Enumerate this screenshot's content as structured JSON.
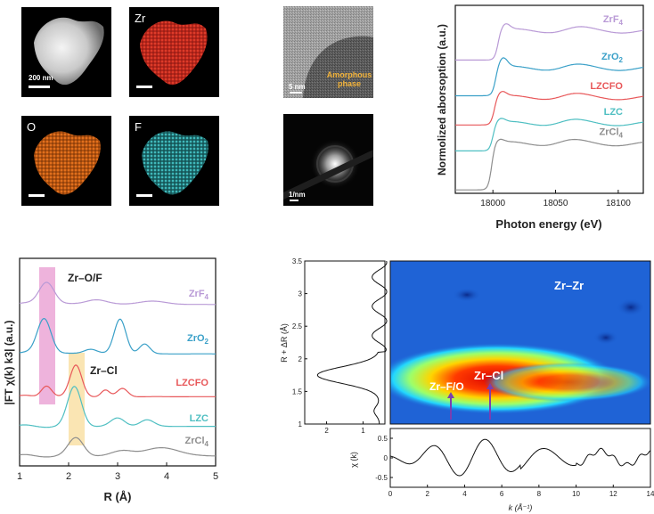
{
  "figure": {
    "eds": {
      "haadf_scale": "200 nm",
      "labels": [
        "Zr",
        "O",
        "F"
      ]
    },
    "tem": {
      "hrtem_scale": "5 nm",
      "annotation_line1": "Amorphous",
      "annotation_line2": "phase",
      "saed_scale": "1/nm"
    },
    "colors": {
      "ZrF4": "#b99ad6",
      "ZrO2": "#3aa0c8",
      "LZCFO": "#e8585a",
      "LZC": "#4fbfc2",
      "ZrCl4": "#8e8e8e"
    }
  },
  "chart_data": [
    {
      "type": "line",
      "title": "",
      "xlabel": "Photon energy (eV)",
      "ylabel": "Normolized aborsoption (a.u.)",
      "xlim": [
        17970,
        18120
      ],
      "xticks": [
        "18000",
        "18050",
        "18100"
      ],
      "series": [
        {
          "name": "ZrF4",
          "label_main": "ZrF",
          "label_sub": "4",
          "offset": 4.0,
          "edge": 18004,
          "jump": 0.85,
          "wl": 0.18
        },
        {
          "name": "ZrO2",
          "label_main": "ZrO",
          "label_sub": "2",
          "offset": 2.9,
          "edge": 18002,
          "jump": 0.8,
          "wl": 0.28
        },
        {
          "name": "LZCFO",
          "label_main": "LZCFO",
          "label_sub": "",
          "offset": 2.0,
          "edge": 18001,
          "jump": 0.8,
          "wl": 0.15
        },
        {
          "name": "LZC",
          "label_main": "LZC",
          "label_sub": "",
          "offset": 1.2,
          "edge": 18000,
          "jump": 0.8,
          "wl": 0.12
        },
        {
          "name": "ZrCl4",
          "label_main": "ZrCl",
          "label_sub": "4",
          "offset": 0.0,
          "edge": 17999,
          "jump": 1.35,
          "wl": 0.1
        }
      ]
    },
    {
      "type": "line",
      "title": "",
      "xlabel": "R (Å)",
      "ylabel": "|FT χ(k) k3| (a.u.)",
      "xlim": [
        1,
        5
      ],
      "xticks": [
        "1",
        "2",
        "3",
        "4",
        "5"
      ],
      "annotations": [
        "Zr–O/F",
        "Zr–Cl"
      ],
      "series": [
        {
          "name": "ZrF4",
          "label_main": "ZrF",
          "label_sub": "4",
          "offset": 4.6,
          "peaks": [
            [
              1.55,
              0.7,
              0.22
            ],
            [
              2.55,
              0.15,
              0.3
            ],
            [
              3.7,
              0.1,
              0.4
            ]
          ]
        },
        {
          "name": "ZrO2",
          "label_main": "ZrO",
          "label_sub": "2",
          "offset": 3.1,
          "peaks": [
            [
              1.5,
              1.1,
              0.2
            ],
            [
              2.45,
              0.15,
              0.2
            ],
            [
              3.05,
              1.05,
              0.17
            ],
            [
              3.55,
              0.3,
              0.15
            ]
          ]
        },
        {
          "name": "LZCFO",
          "label_main": "LZCFO",
          "label_sub": "",
          "offset": 1.8,
          "peaks": [
            [
              1.55,
              0.35,
              0.15
            ],
            [
              2.15,
              0.95,
              0.17
            ],
            [
              2.75,
              0.2,
              0.12
            ],
            [
              3.1,
              0.25,
              0.15
            ]
          ]
        },
        {
          "name": "LZC",
          "label_main": "LZC",
          "label_sub": "",
          "offset": 0.9,
          "peaks": [
            [
              2.12,
              1.2,
              0.2
            ],
            [
              3.0,
              0.25,
              0.2
            ],
            [
              3.6,
              0.2,
              0.2
            ]
          ]
        },
        {
          "name": "ZrCl4",
          "label_main": "ZrCl",
          "label_sub": "4",
          "offset": 0.0,
          "peaks": [
            [
              2.15,
              0.55,
              0.22
            ],
            [
              3.1,
              0.15,
              0.3
            ],
            [
              3.9,
              0.25,
              0.5
            ]
          ]
        }
      ]
    },
    {
      "type": "heatmap",
      "title": "",
      "xlabel": "k (Å⁻¹)",
      "ylabel": "R + ΔR (Å)",
      "xlim": [
        0,
        14
      ],
      "ylim": [
        1,
        3.5
      ],
      "xticks": [
        "0",
        "2",
        "4",
        "6",
        "8",
        "10",
        "12",
        "14"
      ],
      "yticks": [
        "1",
        "1.5",
        "2",
        "2.5",
        "3",
        "3.5"
      ],
      "annotations": [
        "Zr–Zr",
        "Zr–Cl",
        "Zr–F/O"
      ],
      "side_panel_xticks": [
        "2",
        "1"
      ],
      "bottom_panel_ylabel": "χ (k)",
      "bottom_panel_yticks": [
        "0.5",
        "0",
        "-0.5"
      ]
    }
  ]
}
